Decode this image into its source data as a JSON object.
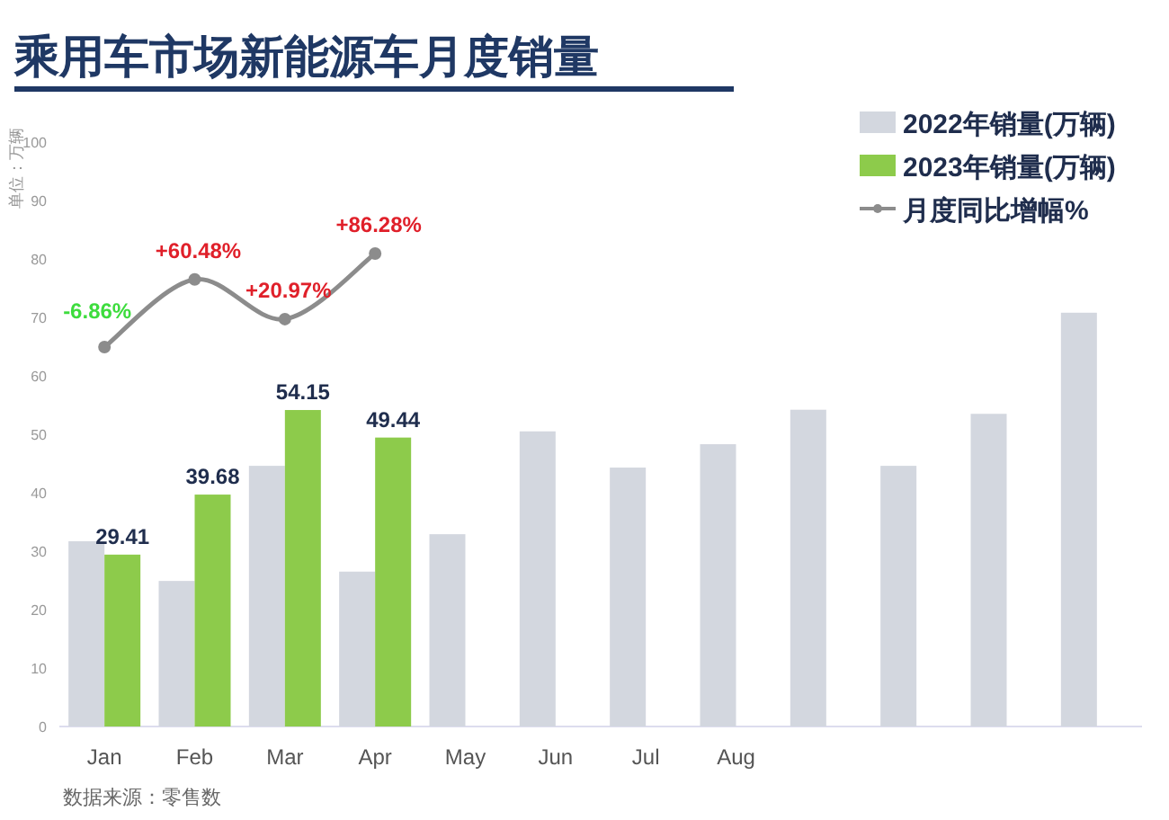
{
  "chart_data": {
    "type": "bar",
    "title": "乘用车市场新能源车月度销量",
    "ylabel": "单位：万辆",
    "categories": [
      "Jan",
      "Feb",
      "Mar",
      "Apr",
      "May",
      "Jun",
      "Jul",
      "Aug",
      null,
      null,
      null,
      null
    ],
    "series": [
      {
        "name": "2022年销量(万辆)",
        "color": "#d3d7df",
        "values": [
          31.7,
          24.9,
          44.6,
          26.5,
          32.9,
          50.5,
          44.3,
          48.3,
          54.2,
          44.6,
          53.5,
          70.8
        ]
      },
      {
        "name": "2023年销量(万辆)",
        "color": "#8dcb4b",
        "values": [
          29.41,
          39.68,
          54.15,
          49.44,
          null,
          null,
          null,
          null,
          null,
          null,
          null,
          null
        ],
        "value_labels": [
          "29.41",
          "39.68",
          "54.15",
          "49.44",
          null,
          null,
          null,
          null,
          null,
          null,
          null,
          null
        ]
      },
      {
        "name": "月度同比增幅%",
        "type": "line",
        "axis": "y2",
        "color": "#8c8c8c",
        "values": [
          -6.86,
          60.48,
          20.97,
          86.28,
          null,
          null,
          null,
          null,
          null,
          null,
          null,
          null
        ],
        "value_labels": [
          "-6.86%",
          "+60.48%",
          "+20.97%",
          "+86.28%",
          null,
          null,
          null,
          null,
          null,
          null,
          null,
          null
        ]
      }
    ],
    "ylim": [
      0,
      100
    ],
    "yticks": [
      0,
      10,
      20,
      30,
      40,
      50,
      60,
      70,
      80,
      90,
      100
    ],
    "marker": "circle",
    "legend": "top right",
    "grid": false,
    "annotations": [
      "数据来源：零售数"
    ]
  }
}
